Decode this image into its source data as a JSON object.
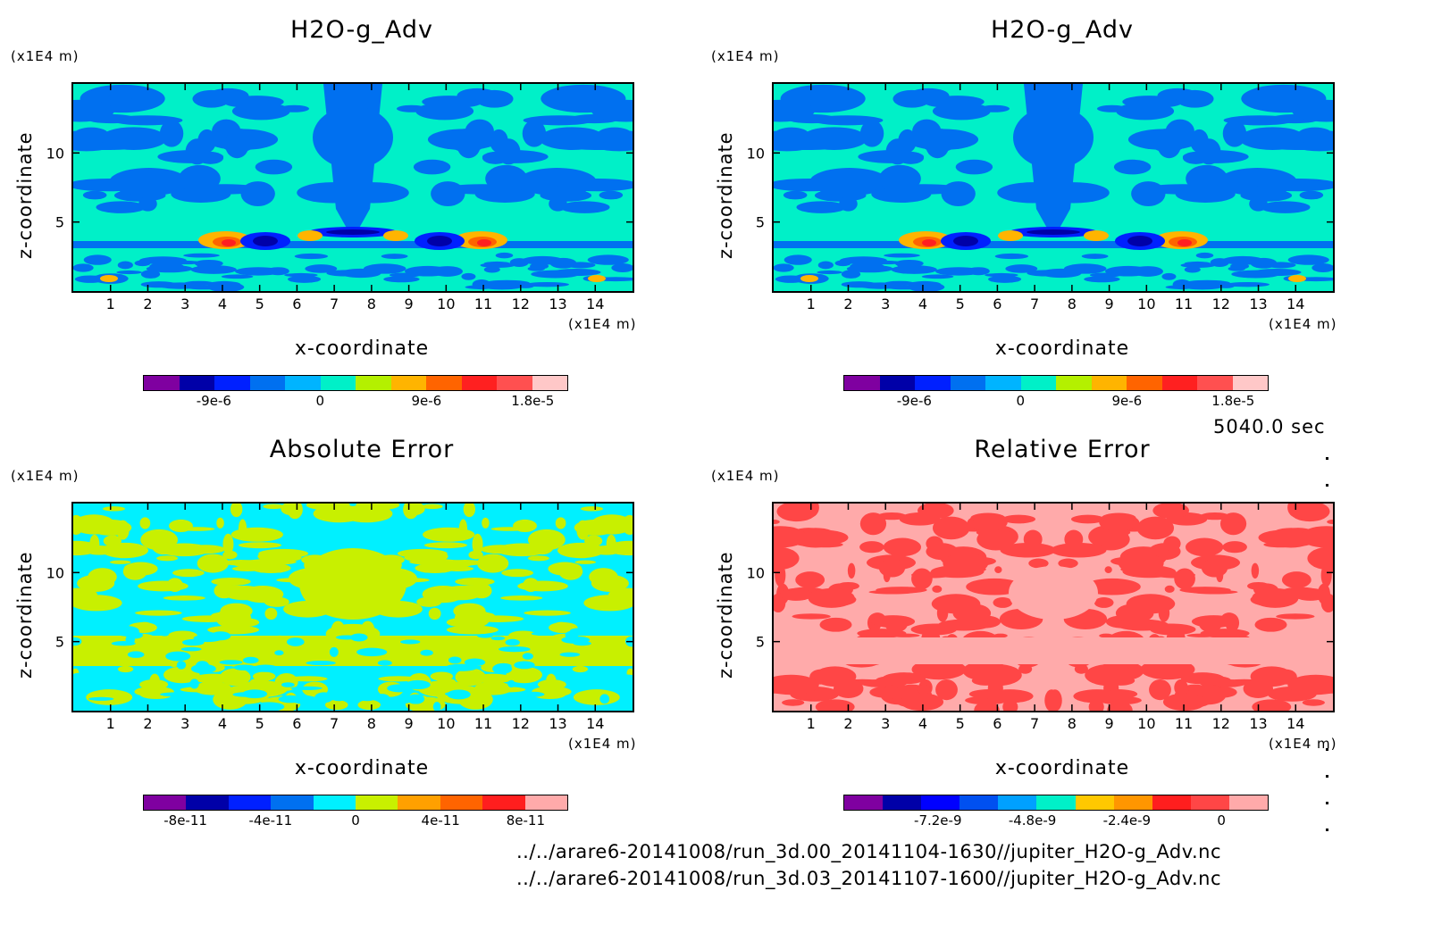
{
  "timestamp": "5040.0 sec",
  "files": [
    "../../arare6-20141008/run_3d.00_20141104-1630//jupiter_H2O-g_Adv.nc",
    "../../arare6-20141008/run_3d.03_20141107-1600//jupiter_H2O-g_Adv.nc"
  ],
  "chart_data": [
    {
      "type": "heatmap",
      "title": "H2O-g_Adv",
      "xlabel": "x-coordinate",
      "ylabel": "z-coordinate",
      "xunit": "(x1E4 m)",
      "yunit": "(x1E4 m)",
      "xlim": [
        0,
        15
      ],
      "ylim": [
        0,
        15
      ],
      "xticks": [
        "1",
        "2",
        "3",
        "4",
        "5",
        "6",
        "7",
        "8",
        "9",
        "10",
        "11",
        "12",
        "13",
        "14"
      ],
      "yticks": [
        "5",
        "10"
      ],
      "colorbar": {
        "colors": [
          "#7f00a0",
          "#0000a8",
          "#0020ff",
          "#0070f0",
          "#00b4ff",
          "#00f0c8",
          "#b4f000",
          "#ffb400",
          "#ff6400",
          "#ff2020",
          "#ff5050",
          "#ffc8c8"
        ],
        "tick_labels": [
          "-9e-6",
          "0",
          "9e-6",
          "1.8e-5"
        ],
        "tick_values": [
          -9e-06,
          0,
          9e-06,
          1.8e-05
        ],
        "range": [
          -1.5e-05,
          2.1e-05
        ]
      }
    },
    {
      "type": "heatmap",
      "title": "H2O-g_Adv",
      "xlabel": "x-coordinate",
      "ylabel": "z-coordinate",
      "xunit": "(x1E4 m)",
      "yunit": "(x1E4 m)",
      "xlim": [
        0,
        15
      ],
      "ylim": [
        0,
        15
      ],
      "xticks": [
        "1",
        "2",
        "3",
        "4",
        "5",
        "6",
        "7",
        "8",
        "9",
        "10",
        "11",
        "12",
        "13",
        "14"
      ],
      "yticks": [
        "5",
        "10"
      ],
      "colorbar": {
        "colors": [
          "#7f00a0",
          "#0000a8",
          "#0020ff",
          "#0070f0",
          "#00b4ff",
          "#00f0c8",
          "#b4f000",
          "#ffb400",
          "#ff6400",
          "#ff2020",
          "#ff5050",
          "#ffc8c8"
        ],
        "tick_labels": [
          "-9e-6",
          "0",
          "9e-6",
          "1.8e-5"
        ],
        "tick_values": [
          -9e-06,
          0,
          9e-06,
          1.8e-05
        ],
        "range": [
          -1.5e-05,
          2.1e-05
        ]
      }
    },
    {
      "type": "heatmap",
      "title": "Absolute Error",
      "xlabel": "x-coordinate",
      "ylabel": "z-coordinate",
      "xunit": "(x1E4 m)",
      "yunit": "(x1E4 m)",
      "xlim": [
        0,
        15
      ],
      "ylim": [
        0,
        15
      ],
      "xticks": [
        "1",
        "2",
        "3",
        "4",
        "5",
        "6",
        "7",
        "8",
        "9",
        "10",
        "11",
        "12",
        "13",
        "14"
      ],
      "yticks": [
        "5",
        "10"
      ],
      "colorbar": {
        "colors": [
          "#7f00a0",
          "#0000a8",
          "#0020ff",
          "#0070f0",
          "#00f0ff",
          "#c8f000",
          "#ffa000",
          "#ff6400",
          "#ff1e1e",
          "#ffaaaa"
        ],
        "tick_labels": [
          "-8e-11",
          "-4e-11",
          "0",
          "4e-11",
          "8e-11"
        ],
        "tick_values": [
          -8e-11,
          -4e-11,
          0,
          4e-11,
          8e-11
        ],
        "range": [
          -1e-10,
          1e-10
        ]
      }
    },
    {
      "type": "heatmap",
      "title": "Relative Error",
      "xlabel": "x-coordinate",
      "ylabel": "z-coordinate",
      "xunit": "(x1E4 m)",
      "yunit": "(x1E4 m)",
      "xlim": [
        0,
        15
      ],
      "ylim": [
        0,
        15
      ],
      "xticks": [
        "1",
        "2",
        "3",
        "4",
        "5",
        "6",
        "7",
        "8",
        "9",
        "10",
        "11",
        "12",
        "13",
        "14"
      ],
      "yticks": [
        "5",
        "10"
      ],
      "colorbar": {
        "colors": [
          "#7f00a0",
          "#0000a8",
          "#0000ff",
          "#0050f0",
          "#00a0ff",
          "#00f0c8",
          "#ffc800",
          "#ff9600",
          "#ff1e1e",
          "#ff4646",
          "#ffaaaa"
        ],
        "tick_labels": [
          "-7.2e-9",
          "-4.8e-9",
          "-2.4e-9",
          "0"
        ],
        "tick_values": [
          -7.2e-09,
          -4.8e-09,
          -2.4e-09,
          0
        ],
        "range": [
          -9.6e-09,
          1.2e-09
        ]
      }
    }
  ]
}
